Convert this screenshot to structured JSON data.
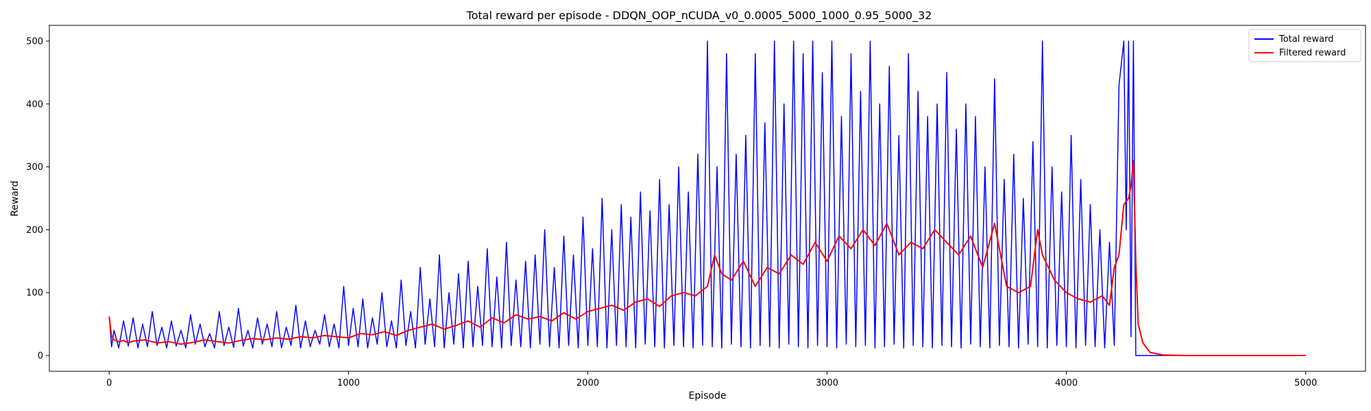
{
  "chart_data": {
    "type": "line",
    "title": "Total reward per episode - DDQN_OOP_nCUDA_v0_0.0005_5000_1000_0.95_5000_32",
    "xlabel": "Episode",
    "ylabel": "Reward",
    "xlim": [
      -250,
      5250
    ],
    "ylim": [
      -25,
      525
    ],
    "xticks": [
      0,
      1000,
      2000,
      3000,
      4000,
      5000
    ],
    "yticks": [
      0,
      100,
      200,
      300,
      400,
      500
    ],
    "grid": false,
    "legend_position": "top-right",
    "series": [
      {
        "name": "Total reward",
        "color": "#0000ff",
        "x": [
          0,
          10,
          20,
          40,
          60,
          80,
          100,
          120,
          140,
          160,
          180,
          200,
          220,
          240,
          260,
          280,
          300,
          320,
          340,
          360,
          380,
          400,
          420,
          440,
          460,
          480,
          500,
          520,
          540,
          560,
          580,
          600,
          620,
          640,
          660,
          680,
          700,
          720,
          740,
          760,
          780,
          800,
          820,
          840,
          860,
          880,
          900,
          920,
          940,
          960,
          980,
          1000,
          1020,
          1040,
          1060,
          1080,
          1100,
          1120,
          1140,
          1160,
          1180,
          1200,
          1220,
          1240,
          1260,
          1280,
          1300,
          1320,
          1340,
          1360,
          1380,
          1400,
          1420,
          1440,
          1460,
          1480,
          1500,
          1520,
          1540,
          1560,
          1580,
          1600,
          1620,
          1640,
          1660,
          1680,
          1700,
          1720,
          1740,
          1760,
          1780,
          1800,
          1820,
          1840,
          1860,
          1880,
          1900,
          1920,
          1940,
          1960,
          1980,
          2000,
          2020,
          2040,
          2060,
          2080,
          2100,
          2120,
          2140,
          2160,
          2180,
          2200,
          2220,
          2240,
          2260,
          2280,
          2300,
          2320,
          2340,
          2360,
          2380,
          2400,
          2420,
          2440,
          2460,
          2480,
          2500,
          2520,
          2540,
          2560,
          2580,
          2600,
          2620,
          2640,
          2660,
          2680,
          2700,
          2720,
          2740,
          2760,
          2780,
          2800,
          2820,
          2840,
          2860,
          2880,
          2900,
          2920,
          2940,
          2960,
          2980,
          3000,
          3020,
          3040,
          3060,
          3080,
          3100,
          3120,
          3140,
          3160,
          3180,
          3200,
          3220,
          3240,
          3260,
          3280,
          3300,
          3320,
          3340,
          3360,
          3380,
          3400,
          3420,
          3440,
          3460,
          3480,
          3500,
          3520,
          3540,
          3560,
          3580,
          3600,
          3620,
          3640,
          3660,
          3680,
          3700,
          3720,
          3740,
          3760,
          3780,
          3800,
          3820,
          3840,
          3860,
          3880,
          3900,
          3920,
          3940,
          3960,
          3980,
          4000,
          4020,
          4040,
          4060,
          4080,
          4100,
          4120,
          4140,
          4160,
          4180,
          4200,
          4220,
          4240,
          4250,
          4260,
          4270,
          4280,
          4290,
          4300,
          4320,
          5000
        ],
        "y": [
          62,
          14,
          40,
          12,
          55,
          15,
          60,
          12,
          50,
          14,
          70,
          16,
          45,
          12,
          55,
          15,
          40,
          12,
          65,
          18,
          50,
          14,
          35,
          12,
          70,
          16,
          45,
          13,
          75,
          15,
          40,
          12,
          60,
          18,
          50,
          14,
          70,
          12,
          45,
          16,
          80,
          12,
          55,
          14,
          40,
          18,
          65,
          14,
          50,
          12,
          110,
          16,
          75,
          14,
          90,
          12,
          60,
          18,
          100,
          14,
          55,
          12,
          120,
          16,
          70,
          12,
          140,
          18,
          90,
          14,
          160,
          12,
          100,
          18,
          130,
          12,
          150,
          14,
          110,
          16,
          170,
          14,
          125,
          12,
          180,
          16,
          120,
          14,
          150,
          12,
          160,
          18,
          200,
          14,
          140,
          12,
          190,
          16,
          160,
          12,
          220,
          16,
          170,
          14,
          250,
          12,
          200,
          16,
          240,
          14,
          220,
          12,
          260,
          18,
          230,
          14,
          280,
          12,
          240,
          16,
          300,
          14,
          260,
          12,
          320,
          16,
          500,
          14,
          300,
          12,
          480,
          18,
          320,
          14,
          350,
          12,
          480,
          16,
          370,
          14,
          500,
          12,
          400,
          18,
          500,
          14,
          480,
          12,
          500,
          16,
          450,
          14,
          500,
          12,
          380,
          18,
          480,
          14,
          420,
          16,
          500,
          12,
          400,
          14,
          460,
          18,
          350,
          12,
          480,
          16,
          420,
          14,
          380,
          12,
          400,
          16,
          450,
          14,
          360,
          12,
          400,
          18,
          380,
          14,
          300,
          12,
          440,
          16,
          280,
          14,
          320,
          12,
          250,
          18,
          340,
          14,
          500,
          12,
          300,
          16,
          260,
          14,
          350,
          12,
          280,
          16,
          240,
          14,
          200,
          12,
          180,
          16,
          430,
          500,
          200,
          500,
          30,
          500,
          0,
          0,
          0,
          0
        ]
      },
      {
        "name": "Filtered reward",
        "color": "#ff0000",
        "x": [
          0,
          10,
          20,
          40,
          60,
          80,
          100,
          150,
          200,
          250,
          300,
          350,
          400,
          450,
          500,
          550,
          600,
          650,
          700,
          750,
          800,
          850,
          900,
          950,
          1000,
          1050,
          1100,
          1150,
          1200,
          1250,
          1300,
          1350,
          1400,
          1450,
          1500,
          1550,
          1600,
          1650,
          1700,
          1750,
          1800,
          1850,
          1900,
          1950,
          2000,
          2050,
          2100,
          2150,
          2200,
          2250,
          2300,
          2350,
          2400,
          2450,
          2500,
          2530,
          2560,
          2600,
          2650,
          2700,
          2750,
          2800,
          2850,
          2900,
          2950,
          3000,
          3050,
          3100,
          3150,
          3200,
          3250,
          3300,
          3350,
          3400,
          3450,
          3500,
          3550,
          3600,
          3650,
          3700,
          3720,
          3750,
          3800,
          3850,
          3880,
          3900,
          3950,
          4000,
          4050,
          4100,
          4150,
          4180,
          4200,
          4220,
          4240,
          4260,
          4270,
          4280,
          4290,
          4300,
          4320,
          4350,
          4400,
          4500,
          5000
        ],
        "y": [
          62,
          30,
          25,
          22,
          24,
          20,
          23,
          25,
          20,
          22,
          18,
          21,
          25,
          22,
          20,
          24,
          27,
          25,
          28,
          26,
          30,
          28,
          32,
          30,
          28,
          35,
          33,
          38,
          32,
          40,
          45,
          50,
          42,
          48,
          55,
          45,
          60,
          52,
          65,
          58,
          62,
          55,
          68,
          58,
          70,
          75,
          80,
          72,
          85,
          90,
          78,
          95,
          100,
          95,
          110,
          160,
          130,
          120,
          150,
          110,
          140,
          130,
          160,
          145,
          180,
          150,
          190,
          170,
          200,
          175,
          210,
          160,
          180,
          170,
          200,
          180,
          160,
          190,
          140,
          210,
          170,
          110,
          100,
          110,
          200,
          160,
          120,
          100,
          90,
          85,
          95,
          80,
          140,
          160,
          240,
          250,
          270,
          310,
          150,
          50,
          20,
          5,
          1,
          0,
          0
        ]
      }
    ]
  }
}
